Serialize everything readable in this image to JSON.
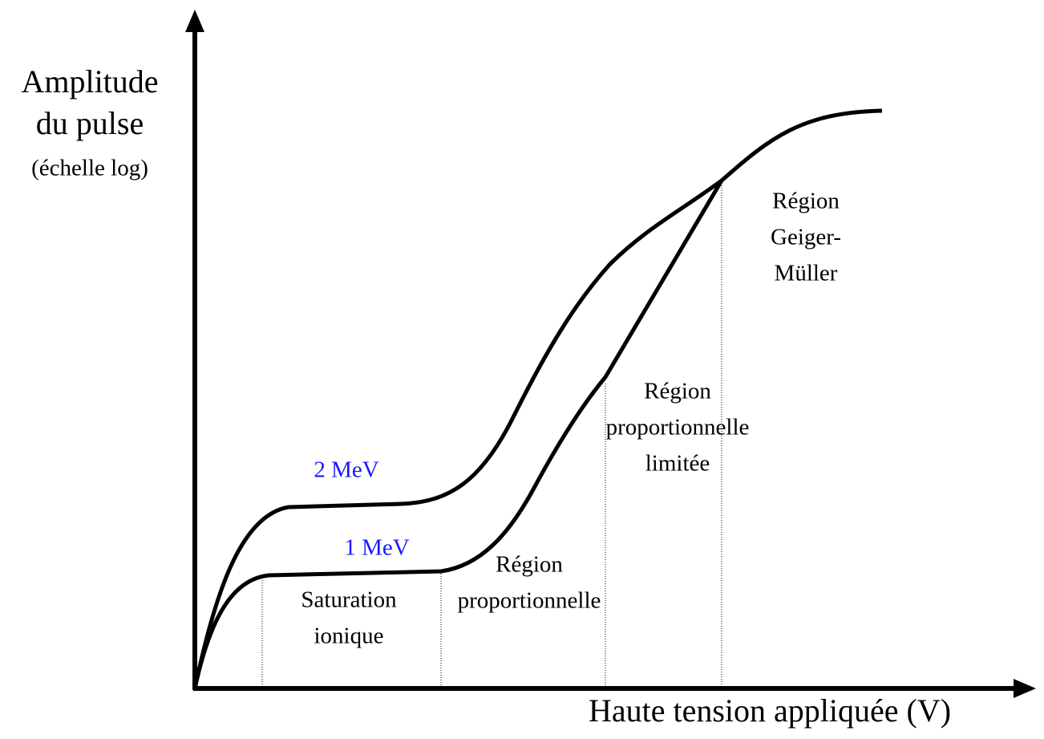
{
  "axes": {
    "y_label": [
      "Amplitude",
      "du pulse",
      "(échelle log)"
    ],
    "x_label": "Haute tension appliquée (V)"
  },
  "curves": [
    {
      "label": "2 MeV"
    },
    {
      "label": "1 MeV"
    }
  ],
  "regions": [
    {
      "label": [
        "Saturation",
        "ionique"
      ]
    },
    {
      "label": [
        "Région",
        "proportionnelle"
      ]
    },
    {
      "label": [
        "Région",
        "proportionnelle",
        "limitée"
      ]
    },
    {
      "label": [
        "Région",
        "Geiger-",
        "Müller"
      ]
    }
  ]
}
